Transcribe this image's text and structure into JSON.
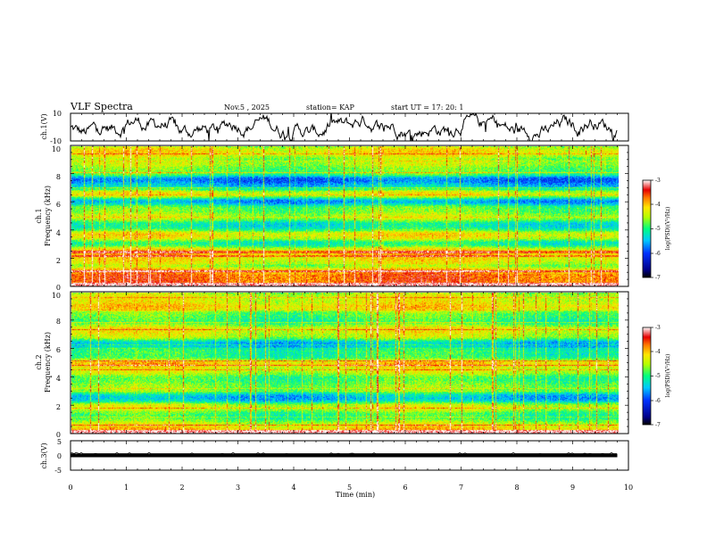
{
  "header": {
    "title": "VLF Spectra",
    "date": "Nov.5  , 2025",
    "station": "station= KAP",
    "start": "start  UT  =    17: 20: 1"
  },
  "chart_data": [
    {
      "type": "line",
      "name": "ch1-waveform",
      "ylabel": "ch.1(V)",
      "ylim": [
        -10,
        10
      ],
      "ytick_labels": [
        "10",
        "-10"
      ],
      "xlim": [
        0,
        10
      ],
      "data_xrange": [
        0,
        9.8
      ],
      "description_values": {
        "amplitude_min": -10,
        "amplitude_max": 10
      }
    },
    {
      "type": "heatmap",
      "name": "ch1-spectrogram",
      "ylabel_top": "ch.1",
      "ylabel": "Frequency  (kHz)",
      "ylim": [
        0,
        10
      ],
      "ytick_labels": [
        "0",
        "2",
        "4",
        "6",
        "8",
        "10"
      ],
      "xlim": [
        0,
        10
      ],
      "data_xrange": [
        0,
        9.8
      ],
      "colorbar": {
        "min": -7,
        "max": -3,
        "tick_labels": [
          "-3",
          "-4",
          "-5",
          "-6",
          "-7"
        ],
        "label": "log(PSD)(V²/Hz)"
      },
      "bands": [
        {
          "f": 0.3,
          "level": -3.3
        },
        {
          "f": 0.7,
          "level": -3.4
        },
        {
          "f": 1.0,
          "level": -3.5
        },
        {
          "f": 1.9,
          "level": -4.0
        },
        {
          "f": 2.3,
          "level": -3.6
        },
        {
          "f": 2.6,
          "level": -3.9
        },
        {
          "f": 3.1,
          "level": -5.3
        },
        {
          "f": 3.6,
          "level": -4.0
        },
        {
          "f": 4.4,
          "level": -5.4
        },
        {
          "f": 5.0,
          "level": -4.2
        },
        {
          "f": 5.6,
          "level": -4.6
        },
        {
          "f": 6.1,
          "level": -6.0
        },
        {
          "f": 6.6,
          "level": -4.1
        },
        {
          "f": 7.2,
          "level": -5.6
        },
        {
          "f": 7.6,
          "level": -6.2
        },
        {
          "f": 8.2,
          "level": -4.6
        },
        {
          "f": 8.8,
          "level": -4.3
        },
        {
          "f": 9.6,
          "level": -4.0
        }
      ]
    },
    {
      "type": "heatmap",
      "name": "ch2-spectrogram",
      "ylabel_top": "ch.2",
      "ylabel": "Frequency  (kHz)",
      "ylim": [
        0,
        10
      ],
      "ytick_labels": [
        "0",
        "2",
        "4",
        "6",
        "8",
        "10"
      ],
      "xlim": [
        0,
        10
      ],
      "data_xrange": [
        0,
        9.8
      ],
      "colorbar": {
        "min": -7,
        "max": -3,
        "tick_labels": [
          "-3",
          "-4",
          "-5",
          "-6",
          "-7"
        ],
        "label": "log(PSD)(V²/Hz)"
      },
      "bands": [
        {
          "f": 0.2,
          "level": -3.5
        },
        {
          "f": 0.5,
          "level": -4.2
        },
        {
          "f": 1.3,
          "level": -5.0
        },
        {
          "f": 1.9,
          "level": -4.1
        },
        {
          "f": 2.6,
          "level": -5.7
        },
        {
          "f": 3.2,
          "level": -4.6
        },
        {
          "f": 3.9,
          "level": -5.0
        },
        {
          "f": 4.5,
          "level": -4.2
        },
        {
          "f": 5.0,
          "level": -3.6
        },
        {
          "f": 5.6,
          "level": -5.0
        },
        {
          "f": 6.4,
          "level": -5.8
        },
        {
          "f": 7.0,
          "level": -4.4
        },
        {
          "f": 7.4,
          "level": -4.0
        },
        {
          "f": 8.4,
          "level": -4.7
        },
        {
          "f": 9.0,
          "level": -3.8
        },
        {
          "f": 9.6,
          "level": -4.2
        }
      ]
    },
    {
      "type": "line",
      "name": "ch3-waveform",
      "ylabel": "ch.3(V)",
      "ylim": [
        -5,
        5
      ],
      "ytick_labels": [
        "5",
        "0",
        "-5"
      ],
      "xlim": [
        0,
        10
      ],
      "data_xrange": [
        0,
        9.8
      ],
      "description_values": {
        "band_min": -0.6,
        "band_max": 0.6
      }
    }
  ],
  "xaxis": {
    "label": "Time  (min)",
    "tick_labels": [
      "0",
      "1",
      "2",
      "3",
      "4",
      "5",
      "6",
      "7",
      "8",
      "9",
      "10"
    ]
  }
}
